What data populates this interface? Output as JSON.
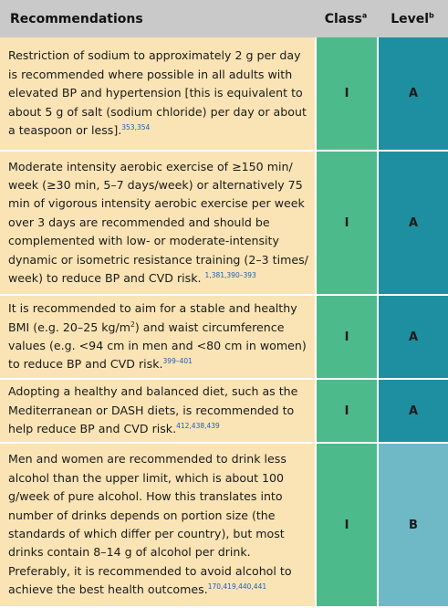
{
  "header": {
    "recommendations": "Recommendations",
    "class": "Class",
    "class_sup": "a",
    "level": "Level",
    "level_sup": "b"
  },
  "rows": [
    {
      "text": "Restriction of sodium to approximately 2 g per day is recommended where possible in all adults with elevated BP and hypertension [this is equivalent to about 5 g of salt (sodium chloride) per day or about a teaspoon or less].",
      "refs": "353,354",
      "class": "I",
      "level": "A"
    },
    {
      "text": "Moderate intensity aerobic exercise of ≥150 min/ week (≥30 min, 5–7 days/week) or alternatively 75 min of vigorous intensity aerobic exercise per week over 3 days are recommended and should be complemented with low- or moderate-intensity dynamic or isometric resistance training (2–3 times/ week) to reduce BP and CVD risk.",
      "refs": "1,381,390–393",
      "class": "I",
      "level": "A"
    },
    {
      "text_before": "It is recommended to aim for a stable and healthy BMI (e.g. 20–25 kg/m",
      "unit_sup": "2",
      "text": ") and waist circumference values (e.g. <94 cm in men and <80 cm in women) to reduce BP and CVD risk.",
      "refs": "399–401",
      "class": "I",
      "level": "A"
    },
    {
      "text": "Adopting a healthy and balanced diet, such as the Mediterranean or DASH diets, is recommended to help reduce BP and CVD risk.",
      "refs": "412,438,439",
      "class": "I",
      "level": "A"
    },
    {
      "text": "Men and women are recommended to drink less alcohol than the upper limit, which is about 100 g/week of pure alcohol. How this translates into number of drinks depends on portion size (the standards of which differ per country), but most drinks contain 8–14 g of alcohol per drink. Preferably, it is recommended to avoid alcohol to achieve the best health outcomes.",
      "refs": "170,419,440,441",
      "class": "I",
      "level": "B"
    }
  ],
  "colors": {
    "header_bg": "#c9c9c9",
    "recommendation_bg": "#fae4b5",
    "class_bg": "#4dba8c",
    "level_a_bg": "#1e8fa0",
    "level_b_bg": "#6fb9c6",
    "reference_color": "#1f5fb5"
  }
}
